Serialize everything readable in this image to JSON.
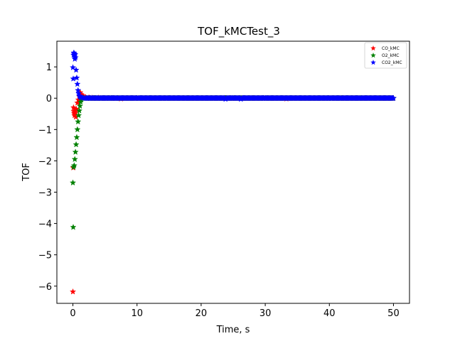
{
  "chart_data": {
    "type": "scatter",
    "title": "TOF_kMCTest_3",
    "xlabel": "Time, s",
    "ylabel": "TOF",
    "xlim": [
      -2.5,
      52.5
    ],
    "ylim": [
      -6.55,
      1.82
    ],
    "x_ticks": [
      0,
      10,
      20,
      30,
      40,
      50
    ],
    "y_ticks": [
      -6,
      -5,
      -4,
      -3,
      -2,
      -1,
      0,
      1
    ],
    "grid": false,
    "legend_position": "top-right",
    "marker": "star",
    "series": [
      {
        "name": "CO_kMC",
        "color": "#ff0000",
        "x": [
          0.0,
          0.05,
          0.1,
          0.15,
          0.2,
          0.25,
          0.3,
          0.35,
          0.4,
          0.45,
          0.55,
          0.7,
          0.85,
          1.0,
          1.15,
          1.3,
          1.5,
          1.7,
          2.0,
          2.5,
          3.0,
          4.0,
          5.0,
          6.0,
          7.0,
          7.5,
          10.0,
          15.0,
          20.0,
          25.0,
          30.0,
          33.3,
          35.0,
          40.0,
          45.0,
          50.0
        ],
        "y": [
          -6.18,
          -2.22,
          -0.3,
          -0.42,
          -0.48,
          -0.55,
          -0.5,
          -0.38,
          -0.45,
          -0.6,
          -0.35,
          -0.15,
          -0.05,
          0.05,
          0.18,
          0.12,
          0.08,
          0.05,
          0.03,
          0.02,
          0.01,
          0.01,
          0.0,
          0.0,
          0.0,
          -0.02,
          0.0,
          0.0,
          0.0,
          0.0,
          0.0,
          -0.02,
          0.0,
          0.0,
          0.0,
          0.0
        ]
      },
      {
        "name": "O2_kMC",
        "color": "#008000",
        "x": [
          0.0,
          0.05,
          0.1,
          0.2,
          0.3,
          0.4,
          0.5,
          0.6,
          0.7,
          0.8,
          0.9,
          1.0,
          1.1,
          1.2,
          1.3,
          1.4,
          1.5,
          1.7,
          2.0,
          2.5,
          3.0,
          4.0,
          5.0,
          10.0,
          20.0,
          30.0,
          40.0,
          50.0
        ],
        "y": [
          -2.7,
          -4.12,
          -2.2,
          -2.15,
          -1.95,
          -1.72,
          -1.48,
          -1.25,
          -1.0,
          -0.75,
          -0.55,
          -0.4,
          -0.25,
          -0.12,
          -0.05,
          0.0,
          0.0,
          0.0,
          0.0,
          0.0,
          0.0,
          0.0,
          0.0,
          0.0,
          0.0,
          0.0,
          0.0,
          0.0
        ]
      },
      {
        "name": "CO2_kMC",
        "color": "#0000ff",
        "x": [
          0.0,
          0.05,
          0.1,
          0.15,
          0.2,
          0.25,
          0.3,
          0.35,
          0.4,
          0.5,
          0.6,
          0.7,
          0.8,
          0.9,
          1.0,
          1.1,
          1.2,
          1.4,
          1.6,
          1.8,
          2.0,
          2.5,
          3.0,
          3.5,
          4.0,
          5.0,
          6.0,
          7.0,
          8.0,
          10.0,
          12.0,
          15.0,
          18.0,
          20.0,
          23.8,
          25.0,
          26.2,
          28.0,
          30.0,
          32.0,
          35.0,
          38.0,
          40.0,
          42.0,
          45.0,
          48.0,
          50.0
        ],
        "y": [
          0.98,
          0.62,
          1.38,
          1.45,
          1.42,
          1.35,
          1.25,
          1.4,
          1.3,
          0.9,
          0.65,
          0.45,
          0.25,
          0.15,
          0.08,
          0.05,
          0.03,
          0.02,
          0.01,
          0.0,
          0.0,
          0.0,
          0.0,
          0.0,
          0.0,
          0.0,
          0.0,
          0.0,
          0.0,
          0.0,
          0.0,
          0.0,
          0.0,
          0.0,
          -0.03,
          0.0,
          -0.03,
          0.0,
          0.0,
          0.0,
          0.0,
          0.0,
          0.0,
          0.0,
          0.0,
          0.0,
          0.0
        ]
      }
    ]
  }
}
